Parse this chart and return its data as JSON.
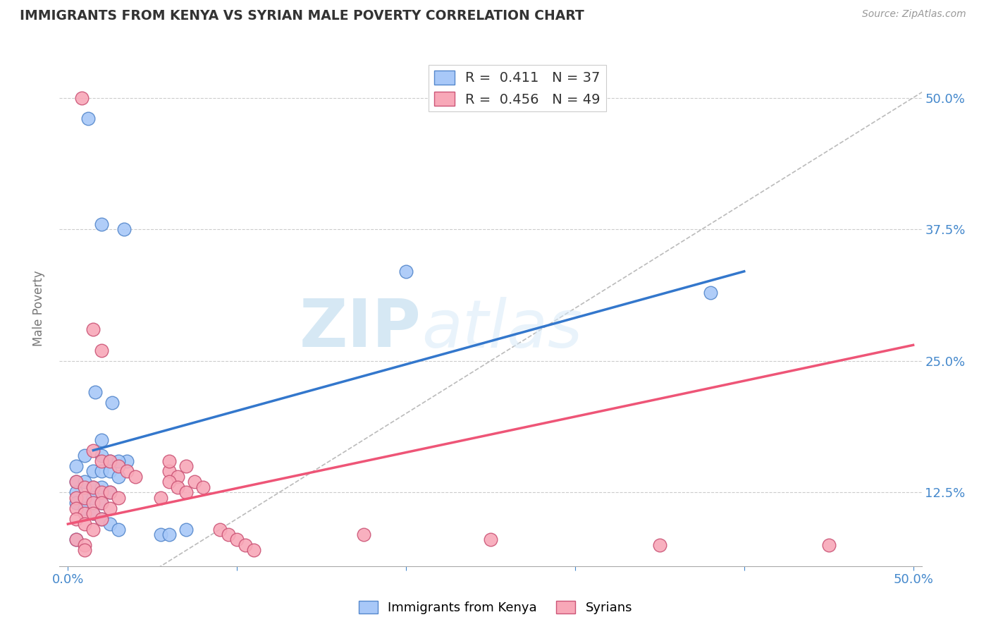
{
  "title": "IMMIGRANTS FROM KENYA VS SYRIAN MALE POVERTY CORRELATION CHART",
  "source": "Source: ZipAtlas.com",
  "ylabel": "Male Poverty",
  "ytick_labels": [
    "12.5%",
    "25.0%",
    "37.5%",
    "50.0%"
  ],
  "ytick_positions": [
    0.125,
    0.25,
    0.375,
    0.5
  ],
  "legend_r1_val": "0.411",
  "legend_n1_val": "37",
  "legend_r2_val": "0.456",
  "legend_n2_val": "49",
  "watermark_zip": "ZIP",
  "watermark_atlas": "atlas",
  "kenya_color": "#a8c8f8",
  "kenya_color_dark": "#5588cc",
  "syrian_color": "#f8a8b8",
  "syrian_color_dark": "#cc5577",
  "kenya_line_color": "#3377cc",
  "syrian_line_color": "#ee5577",
  "dashed_line_color": "#bbbbbb",
  "kenya_line_x": [
    0.015,
    0.4
  ],
  "kenya_line_y": [
    0.165,
    0.335
  ],
  "syrian_line_x": [
    0.0,
    0.5
  ],
  "syrian_line_y": [
    0.095,
    0.265
  ],
  "kenya_scatter": [
    [
      0.012,
      0.48
    ],
    [
      0.02,
      0.38
    ],
    [
      0.033,
      0.375
    ],
    [
      0.2,
      0.335
    ],
    [
      0.016,
      0.22
    ],
    [
      0.026,
      0.21
    ],
    [
      0.38,
      0.315
    ],
    [
      0.02,
      0.175
    ],
    [
      0.01,
      0.16
    ],
    [
      0.02,
      0.16
    ],
    [
      0.025,
      0.155
    ],
    [
      0.005,
      0.15
    ],
    [
      0.015,
      0.145
    ],
    [
      0.02,
      0.145
    ],
    [
      0.025,
      0.145
    ],
    [
      0.005,
      0.135
    ],
    [
      0.01,
      0.135
    ],
    [
      0.015,
      0.13
    ],
    [
      0.02,
      0.13
    ],
    [
      0.025,
      0.125
    ],
    [
      0.005,
      0.125
    ],
    [
      0.01,
      0.12
    ],
    [
      0.015,
      0.12
    ],
    [
      0.02,
      0.115
    ],
    [
      0.005,
      0.115
    ],
    [
      0.01,
      0.11
    ],
    [
      0.015,
      0.105
    ],
    [
      0.02,
      0.1
    ],
    [
      0.025,
      0.095
    ],
    [
      0.03,
      0.09
    ],
    [
      0.055,
      0.085
    ],
    [
      0.005,
      0.08
    ],
    [
      0.06,
      0.085
    ],
    [
      0.07,
      0.09
    ],
    [
      0.035,
      0.155
    ],
    [
      0.03,
      0.155
    ],
    [
      0.03,
      0.14
    ]
  ],
  "syrian_scatter": [
    [
      0.008,
      0.5
    ],
    [
      0.015,
      0.28
    ],
    [
      0.02,
      0.26
    ],
    [
      0.015,
      0.165
    ],
    [
      0.02,
      0.155
    ],
    [
      0.025,
      0.155
    ],
    [
      0.03,
      0.15
    ],
    [
      0.035,
      0.145
    ],
    [
      0.04,
      0.14
    ],
    [
      0.005,
      0.135
    ],
    [
      0.01,
      0.13
    ],
    [
      0.015,
      0.13
    ],
    [
      0.02,
      0.125
    ],
    [
      0.025,
      0.125
    ],
    [
      0.03,
      0.12
    ],
    [
      0.005,
      0.12
    ],
    [
      0.01,
      0.12
    ],
    [
      0.015,
      0.115
    ],
    [
      0.02,
      0.115
    ],
    [
      0.025,
      0.11
    ],
    [
      0.005,
      0.11
    ],
    [
      0.01,
      0.105
    ],
    [
      0.015,
      0.105
    ],
    [
      0.02,
      0.1
    ],
    [
      0.005,
      0.1
    ],
    [
      0.01,
      0.095
    ],
    [
      0.015,
      0.09
    ],
    [
      0.06,
      0.145
    ],
    [
      0.065,
      0.14
    ],
    [
      0.005,
      0.08
    ],
    [
      0.01,
      0.075
    ],
    [
      0.01,
      0.07
    ],
    [
      0.06,
      0.135
    ],
    [
      0.065,
      0.13
    ],
    [
      0.07,
      0.125
    ],
    [
      0.075,
      0.135
    ],
    [
      0.08,
      0.13
    ],
    [
      0.06,
      0.155
    ],
    [
      0.07,
      0.15
    ],
    [
      0.055,
      0.12
    ],
    [
      0.09,
      0.09
    ],
    [
      0.095,
      0.085
    ],
    [
      0.1,
      0.08
    ],
    [
      0.105,
      0.075
    ],
    [
      0.11,
      0.07
    ],
    [
      0.175,
      0.085
    ],
    [
      0.25,
      0.08
    ],
    [
      0.35,
      0.075
    ],
    [
      0.45,
      0.075
    ]
  ],
  "xlim": [
    -0.005,
    0.505
  ],
  "ylim": [
    0.055,
    0.545
  ],
  "background_color": "#ffffff"
}
